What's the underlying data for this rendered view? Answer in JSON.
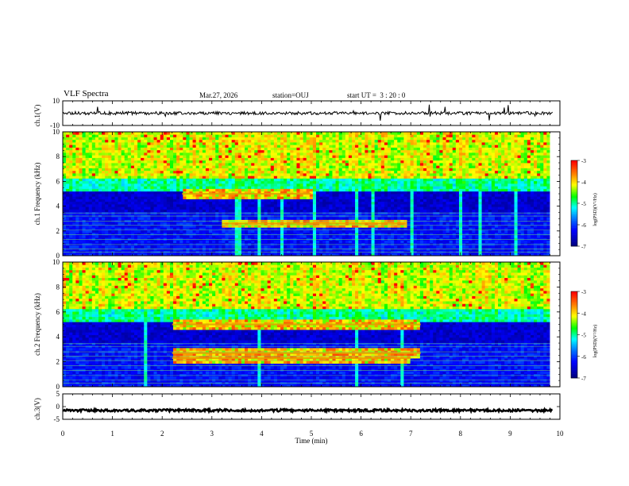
{
  "header": {
    "title": "VLF Spectra",
    "date": "Mar.27, 2026",
    "station": "station=OUJ",
    "start_time": "start UT =  3 : 20 : 0"
  },
  "chart_data": [
    {
      "type": "line",
      "panel": "ch1-waveform",
      "ylabel": "ch.1(V)",
      "ylim": [
        -10,
        10
      ],
      "yticks": [
        "10",
        "-10"
      ],
      "x_range": [
        0,
        10
      ],
      "baseline": 0
    },
    {
      "type": "heatmap",
      "panel": "ch1-spectrogram",
      "ylabel": "ch.1 Frequency (kHz)",
      "ylim": [
        0,
        10
      ],
      "yticks": [
        "0",
        "2",
        "4",
        "6",
        "8",
        "10"
      ],
      "x_range": [
        0,
        10
      ],
      "data_end_min": 9.8,
      "emission_bands_khz": [
        {
          "freq": 5.0,
          "start_min": 2.4,
          "end_min": 5.0
        },
        {
          "freq": 2.6,
          "start_min": 3.2,
          "end_min": 6.9
        }
      ],
      "colorbar": {
        "label": "log(PSD)(V²/Hz)",
        "range": [
          -7,
          -3
        ],
        "ticks": [
          "-3",
          "-4",
          "-5",
          "-6",
          "-7"
        ],
        "colors": [
          "#000080",
          "#0000ff",
          "#0080ff",
          "#00ffff",
          "#00ff00",
          "#ffff00",
          "#ff8000",
          "#ff0000",
          "#ffffff"
        ]
      }
    },
    {
      "type": "heatmap",
      "panel": "ch2-spectrogram",
      "ylabel": "ch.2 Frequency (kHz)",
      "ylim": [
        0,
        10
      ],
      "yticks": [
        "0",
        "2",
        "4",
        "6",
        "8",
        "10"
      ],
      "x_range": [
        0,
        10
      ],
      "data_end_min": 9.8,
      "emission_bands_khz": [
        {
          "freq": 5.0,
          "start_min": 2.2,
          "end_min": 7.2
        },
        {
          "freq": 2.7,
          "start_min": 2.2,
          "end_min": 7.2
        },
        {
          "freq": 2.3,
          "start_min": 2.2,
          "end_min": 7.0
        }
      ],
      "colorbar": {
        "label": "log(PSD)(V²/Hz)",
        "range": [
          -7,
          -3
        ],
        "ticks": [
          "-3",
          "-4",
          "-5",
          "-6",
          "-7"
        ],
        "colors": [
          "#000080",
          "#0000ff",
          "#0080ff",
          "#00ffff",
          "#00ff00",
          "#ffff00",
          "#ff8000",
          "#ff0000",
          "#ffffff"
        ]
      }
    },
    {
      "type": "line",
      "panel": "ch3-waveform",
      "ylabel": "ch.3(V)",
      "ylim": [
        -5,
        5
      ],
      "yticks": [
        "5",
        "0",
        "-5"
      ],
      "x_range": [
        0,
        10
      ],
      "baseline": -1.5
    }
  ],
  "xaxis": {
    "label": "Time (min)",
    "range": [
      0,
      10
    ],
    "ticks": [
      "0",
      "1",
      "2",
      "3",
      "4",
      "5",
      "6",
      "7",
      "8",
      "9",
      "10"
    ]
  }
}
